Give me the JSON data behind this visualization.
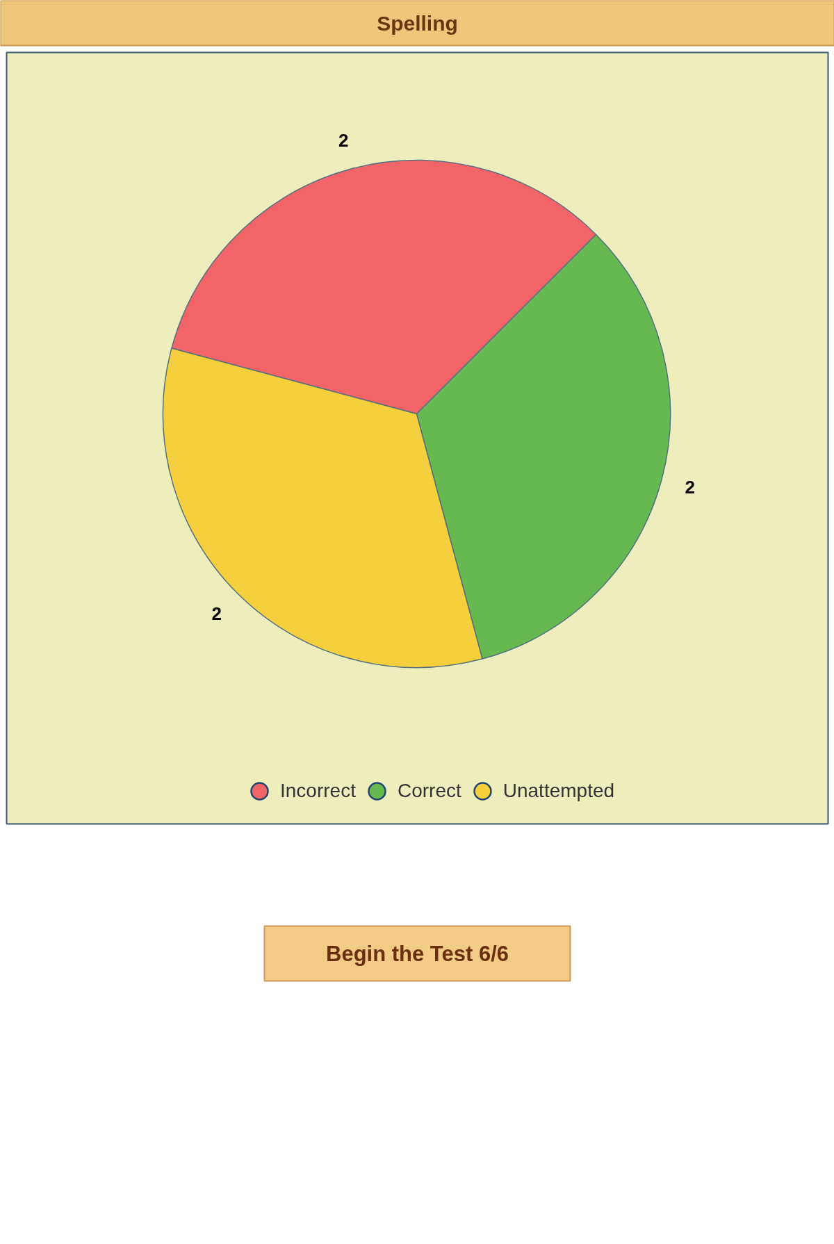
{
  "chart_data": {
    "type": "pie",
    "title": "Spelling",
    "categories": [
      "Incorrect",
      "Correct",
      "Unattempted"
    ],
    "values": [
      2,
      2,
      2
    ],
    "colors": [
      "#f26466",
      "#66b850",
      "#f5cf3c"
    ],
    "data_labels": true,
    "legend": "bottom",
    "annotations": [
      "Begin the Test 6/6"
    ]
  }
}
